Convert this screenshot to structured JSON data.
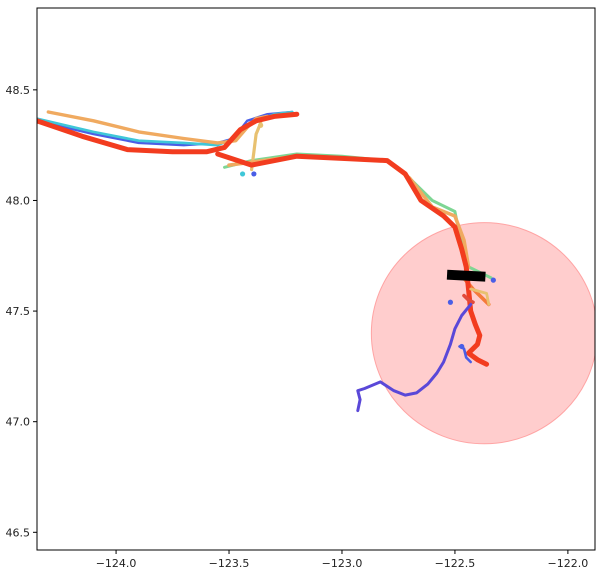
{
  "chart_data": {
    "type": "line",
    "title": "",
    "xlabel": "",
    "ylabel": "",
    "xlim": [
      -124.35,
      -121.88
    ],
    "ylim": [
      46.42,
      48.87
    ],
    "x_ticks": [
      -124.0,
      -123.5,
      -123.0,
      -122.5,
      -122.0
    ],
    "x_tick_labels": [
      "−124.0",
      "−123.5",
      "−123.0",
      "−122.5",
      "−122.0"
    ],
    "y_ticks": [
      46.5,
      47.0,
      47.5,
      48.0,
      48.5
    ],
    "y_tick_labels": [
      "46.5",
      "47.0",
      "47.5",
      "48.0",
      "48.5"
    ],
    "grid": false,
    "legend": "none",
    "circle": {
      "center": [
        -122.37,
        47.4
      ],
      "radius": 0.5,
      "color": "#ff9c9c",
      "opacity": 0.5
    },
    "marker_box": {
      "center": [
        -122.45,
        47.66
      ],
      "width_deg": 0.17,
      "height_deg": 0.045,
      "color": "#000000"
    },
    "series": [
      {
        "color": "#4a5ee6",
        "width": 2.4,
        "x": [
          -124.35,
          -124.1,
          -123.9,
          -123.7,
          -123.55,
          -123.48,
          -123.42,
          -123.33,
          -123.22
        ],
        "y": [
          48.36,
          48.3,
          48.26,
          48.25,
          48.26,
          48.28,
          48.36,
          48.39,
          48.4
        ]
      },
      {
        "color": "#3fc7d8",
        "width": 2.6,
        "x": [
          -124.35,
          -124.1,
          -123.9,
          -123.7,
          -123.55,
          -123.48,
          -123.4,
          -123.3,
          -123.22
        ],
        "y": [
          48.37,
          48.31,
          48.27,
          48.26,
          48.25,
          48.28,
          48.35,
          48.39,
          48.4
        ]
      },
      {
        "color": "#7ed694",
        "width": 3,
        "x": [
          -123.52,
          -123.4,
          -123.2,
          -123.0,
          -122.8,
          -122.72,
          -122.6,
          -122.5,
          -122.47,
          -122.44,
          -122.34
        ],
        "y": [
          48.15,
          48.18,
          48.21,
          48.2,
          48.18,
          48.12,
          48.0,
          47.95,
          47.8,
          47.7,
          47.65
        ]
      },
      {
        "color": "#e8c170",
        "width": 3.2,
        "x": [
          -123.4,
          -123.39,
          -123.38,
          -123.36
        ],
        "y": [
          48.14,
          48.22,
          48.3,
          48.35
        ]
      },
      {
        "color": "#f0aa60",
        "width": 3.4,
        "x": [
          -124.3,
          -124.1,
          -123.9,
          -123.7,
          -123.55,
          -123.47,
          -123.42,
          -123.38,
          -123.33
        ],
        "y": [
          48.4,
          48.36,
          48.31,
          48.28,
          48.26,
          48.27,
          48.33,
          48.37,
          48.38
        ]
      },
      {
        "color": "#f57a3a",
        "width": 3.6,
        "x": [
          -122.47,
          -122.42,
          -122.38,
          -122.35
        ],
        "y": [
          47.66,
          47.6,
          47.56,
          47.53
        ]
      },
      {
        "color": "#f0aa60",
        "width": 3.6,
        "x": [
          -123.5,
          -123.35,
          -123.2,
          -123.0,
          -122.8,
          -122.7,
          -122.6,
          -122.5,
          -122.46,
          -122.44
        ],
        "y": [
          48.16,
          48.18,
          48.2,
          48.19,
          48.18,
          48.1,
          47.97,
          47.93,
          47.82,
          47.7
        ]
      },
      {
        "color": "#f23c1f",
        "width": 5,
        "x": [
          -124.35,
          -124.15,
          -123.95,
          -123.75,
          -123.6,
          -123.52,
          -123.45,
          -123.38,
          -123.3,
          -123.2
        ],
        "y": [
          48.36,
          48.29,
          48.23,
          48.22,
          48.22,
          48.24,
          48.32,
          48.36,
          48.38,
          48.39
        ]
      },
      {
        "color": "#f23c1f",
        "width": 5,
        "x": [
          -123.55,
          -123.4,
          -123.2,
          -123.0,
          -122.8,
          -122.72,
          -122.65,
          -122.55,
          -122.5,
          -122.47,
          -122.45,
          -122.44,
          -122.43,
          -122.41,
          -122.39,
          -122.4,
          -122.44,
          -122.4,
          -122.36
        ],
        "y": [
          48.21,
          48.16,
          48.2,
          48.19,
          48.18,
          48.12,
          48.0,
          47.93,
          47.88,
          47.78,
          47.7,
          47.6,
          47.5,
          47.44,
          47.39,
          47.35,
          47.31,
          47.28,
          47.26
        ]
      },
      {
        "color": "#e8c170",
        "width": 2.8,
        "x": [
          -122.43,
          -122.36,
          -122.35
        ],
        "y": [
          47.6,
          47.58,
          47.53
        ]
      },
      {
        "color": "#e14a3b",
        "width": 3.6,
        "x": [
          -122.46,
          -122.44,
          -122.42
        ],
        "y": [
          47.57,
          47.55,
          47.54
        ]
      },
      {
        "color": "#5a48d8",
        "width": 3,
        "x": [
          -122.43,
          -122.47,
          -122.5,
          -122.52,
          -122.55,
          -122.58,
          -122.62,
          -122.67,
          -122.72,
          -122.77,
          -122.83,
          -122.9,
          -122.93,
          -122.92,
          -122.93
        ],
        "y": [
          47.53,
          47.48,
          47.42,
          47.35,
          47.27,
          47.22,
          47.17,
          47.13,
          47.12,
          47.14,
          47.18,
          47.15,
          47.14,
          47.1,
          47.05
        ]
      },
      {
        "color": "#4a5ee6",
        "width": 2.6,
        "x": [
          -122.48,
          -122.46,
          -122.45,
          -122.43
        ],
        "y": [
          47.34,
          47.33,
          47.29,
          47.27
        ]
      }
    ],
    "points": [
      {
        "x": -123.44,
        "y": 48.12,
        "color": "#3fc7d8"
      },
      {
        "x": -123.39,
        "y": 48.12,
        "color": "#4a5ee6"
      },
      {
        "x": -122.52,
        "y": 47.54,
        "color": "#4a5ee6"
      },
      {
        "x": -122.47,
        "y": 47.34,
        "color": "#4a5ee6"
      },
      {
        "x": -122.33,
        "y": 47.64,
        "color": "#4a5ee6"
      },
      {
        "x": -123.36,
        "y": 48.34,
        "color": "#e8c170"
      }
    ]
  }
}
